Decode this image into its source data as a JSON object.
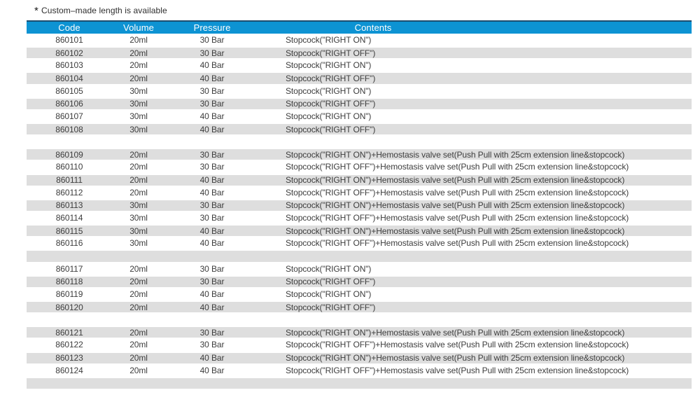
{
  "note": {
    "marker": "*",
    "text": "Custom–made length is available"
  },
  "table": {
    "headers": [
      "Code",
      "Volume",
      "Pressure",
      "Contents"
    ],
    "colors": {
      "header_bg": "#0d93d3",
      "header_top_edge": "#1d4d70",
      "stripe_gray": "#dedede",
      "row_text": "#3d3d3d",
      "header_text": "#ffffff"
    },
    "rows": [
      {
        "code": "860101",
        "volume": "20ml",
        "pressure": "30 Bar",
        "contents": "Stopcock(\"RIGHT ON\")",
        "shade": "white"
      },
      {
        "code": "860102",
        "volume": "20ml",
        "pressure": "30 Bar",
        "contents": "Stopcock(\"RIGHT OFF\")",
        "shade": "gray"
      },
      {
        "code": "860103",
        "volume": "20ml",
        "pressure": "40 Bar",
        "contents": "Stopcock(\"RIGHT ON\")",
        "shade": "white"
      },
      {
        "code": "860104",
        "volume": "20ml",
        "pressure": "40 Bar",
        "contents": "Stopcock(\"RIGHT OFF\")",
        "shade": "gray"
      },
      {
        "code": "860105",
        "volume": "30ml",
        "pressure": "30 Bar",
        "contents": "Stopcock(\"RIGHT ON\")",
        "shade": "white"
      },
      {
        "code": "860106",
        "volume": "30ml",
        "pressure": "30 Bar",
        "contents": "Stopcock(\"RIGHT OFF\")",
        "shade": "gray"
      },
      {
        "code": "860107",
        "volume": "30ml",
        "pressure": "40 Bar",
        "contents": "Stopcock(\"RIGHT ON\")",
        "shade": "white"
      },
      {
        "code": "860108",
        "volume": "30ml",
        "pressure": "40 Bar",
        "contents": "Stopcock(\"RIGHT OFF\")",
        "shade": "gray"
      },
      {
        "spacer": true,
        "shade": "white"
      },
      {
        "code": "860109",
        "volume": "20ml",
        "pressure": "30 Bar",
        "contents": "Stopcock(\"RIGHT ON\")+Hemostasis valve set(Push Pull with 25cm extension line&stopcock)",
        "shade": "gray"
      },
      {
        "code": "860110",
        "volume": "20ml",
        "pressure": "30 Bar",
        "contents": "Stopcock(\"RIGHT OFF\")+Hemostasis valve set(Push Pull with 25cm extension line&stopcock)",
        "shade": "white"
      },
      {
        "code": "860111",
        "volume": "20ml",
        "pressure": "40 Bar",
        "contents": "Stopcock(\"RIGHT ON\")+Hemostasis valve set(Push Pull with 25cm extension line&stopcock)",
        "shade": "gray"
      },
      {
        "code": "860112",
        "volume": "20ml",
        "pressure": "40 Bar",
        "contents": "Stopcock(\"RIGHT OFF\")+Hemostasis valve set(Push Pull with 25cm extension line&stopcock)",
        "shade": "white"
      },
      {
        "code": "860113",
        "volume": "30ml",
        "pressure": "30 Bar",
        "contents": "Stopcock(\"RIGHT ON\")+Hemostasis valve set(Push Pull with 25cm extension line&stopcock)",
        "shade": "gray"
      },
      {
        "code": "860114",
        "volume": "30ml",
        "pressure": "30 Bar",
        "contents": "Stopcock(\"RIGHT OFF\")+Hemostasis valve set(Push Pull with 25cm extension line&stopcock)",
        "shade": "white"
      },
      {
        "code": "860115",
        "volume": "30ml",
        "pressure": "40 Bar",
        "contents": "Stopcock(\"RIGHT ON\")+Hemostasis valve set(Push Pull with 25cm extension line&stopcock)",
        "shade": "gray"
      },
      {
        "code": "860116",
        "volume": "30ml",
        "pressure": "40 Bar",
        "contents": "Stopcock(\"RIGHT OFF\")+Hemostasis valve set(Push Pull with 25cm extension line&stopcock)",
        "shade": "white"
      },
      {
        "spacer": true,
        "shade": "gray"
      },
      {
        "code": "860117",
        "volume": "20ml",
        "pressure": "30 Bar",
        "contents": "Stopcock(\"RIGHT ON\")",
        "shade": "white"
      },
      {
        "code": "860118",
        "volume": "20ml",
        "pressure": "30 Bar",
        "contents": "Stopcock(\"RIGHT OFF\")",
        "shade": "gray"
      },
      {
        "code": "860119",
        "volume": "20ml",
        "pressure": "40 Bar",
        "contents": "Stopcock(\"RIGHT ON\")",
        "shade": "white"
      },
      {
        "code": "860120",
        "volume": "20ml",
        "pressure": "40 Bar",
        "contents": "Stopcock(\"RIGHT OFF\")",
        "shade": "gray"
      },
      {
        "spacer": true,
        "shade": "white"
      },
      {
        "code": "860121",
        "volume": "20ml",
        "pressure": "30 Bar",
        "contents": "Stopcock(\"RIGHT ON\")+Hemostasis valve set(Push Pull with 25cm extension line&stopcock)",
        "shade": "gray"
      },
      {
        "code": "860122",
        "volume": "20ml",
        "pressure": "30 Bar",
        "contents": "Stopcock(\"RIGHT OFF\")+Hemostasis valve set(Push Pull with 25cm extension line&stopcock)",
        "shade": "white"
      },
      {
        "code": "860123",
        "volume": "20ml",
        "pressure": "40 Bar",
        "contents": "Stopcock(\"RIGHT ON\")+Hemostasis valve set(Push Pull with 25cm extension line&stopcock)",
        "shade": "gray"
      },
      {
        "code": "860124",
        "volume": "20ml",
        "pressure": "40 Bar",
        "contents": "Stopcock(\"RIGHT OFF\")+Hemostasis valve set(Push Pull with 25cm extension line&stopcock)",
        "shade": "white"
      },
      {
        "spacer": true,
        "shade": "gray"
      }
    ]
  }
}
